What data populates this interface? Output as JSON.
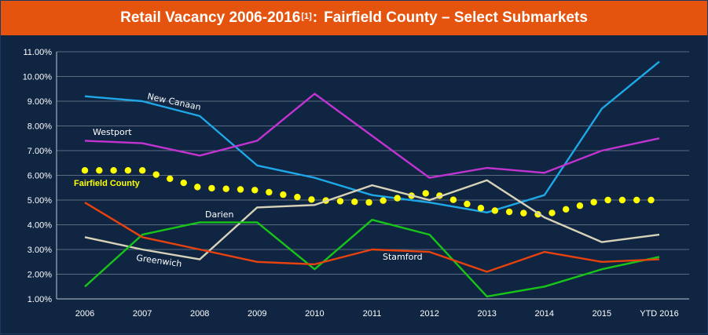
{
  "title": {
    "main": "Retail Vacancy 2006-2016",
    "footnote": "[1]",
    "colon": ":",
    "sub": "Fairfield County – Select Submarkets"
  },
  "colors": {
    "title_bar": "#e4540e",
    "background": "#0f2542",
    "grid": "#5b6b80",
    "axis": "#bfc7d2"
  },
  "chart_data": {
    "type": "line",
    "categories": [
      "2006",
      "2007",
      "2008",
      "2009",
      "2010",
      "2011",
      "2012",
      "2013",
      "2014",
      "2015",
      "YTD 2016"
    ],
    "y_ticks": [
      "1.00%",
      "2.00%",
      "3.00%",
      "4.00%",
      "5.00%",
      "6.00%",
      "7.00%",
      "8.00%",
      "9.00%",
      "10.00%",
      "11.00%"
    ],
    "ylim": [
      1,
      11
    ],
    "grid": true,
    "series": [
      {
        "name": "New Canaan",
        "color": "#1fa8e8",
        "style": "solid",
        "values": [
          9.2,
          9.0,
          8.4,
          6.4,
          5.9,
          5.2,
          4.9,
          4.5,
          5.2,
          8.7,
          10.6
        ]
      },
      {
        "name": "Westport",
        "color": "#c233d1",
        "style": "solid",
        "values": [
          7.4,
          7.3,
          6.8,
          7.4,
          9.3,
          7.6,
          5.9,
          6.3,
          6.1,
          7.0,
          7.5
        ]
      },
      {
        "name": "Fairfield County",
        "color": "#ffff00",
        "style": "dotted",
        "values": [
          6.2,
          6.2,
          5.5,
          5.4,
          5.0,
          4.9,
          5.3,
          4.6,
          4.4,
          5.0,
          5.0
        ]
      },
      {
        "name": "Darien",
        "color": "#d8d3b8",
        "style": "solid",
        "values": [
          3.5,
          3.0,
          2.6,
          4.7,
          4.8,
          5.6,
          5.0,
          5.8,
          4.3,
          3.3,
          3.6
        ]
      },
      {
        "name": "Greenwich",
        "color": "#18c418",
        "style": "solid",
        "values": [
          1.5,
          3.6,
          4.1,
          4.1,
          2.2,
          4.2,
          3.6,
          1.1,
          1.5,
          2.2,
          2.7
        ]
      },
      {
        "name": "Stamford",
        "color": "#e8420e",
        "style": "solid",
        "values": [
          4.9,
          3.5,
          3.0,
          2.5,
          2.4,
          3.0,
          2.9,
          2.1,
          2.9,
          2.5,
          2.6
        ]
      }
    ]
  }
}
